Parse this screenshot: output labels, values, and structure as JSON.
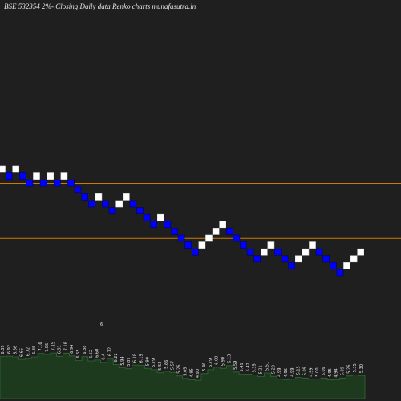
{
  "title": "BSE 532354  2%-  Closing Daily data  Renko  charts munafasutra.in",
  "colors": {
    "background": "#1f1f1f",
    "up_brick": "#ffffff",
    "down_brick": "#0000ff",
    "brick_border": "#000066",
    "level_line": "#cc7a00",
    "volume_bar": "#1e3a1e",
    "volume_line": "#2f6a2f",
    "label": "#eaeaea"
  },
  "chart_data": {
    "type": "renko",
    "title": "BSE 532354  2%-  Closing Daily data  Renko  charts munafasutra.in",
    "box_size_percent": 2,
    "bricks": [
      {
        "level": 0,
        "dir": "up"
      },
      {
        "level": -1,
        "dir": "down"
      },
      {
        "level": 0,
        "dir": "up"
      },
      {
        "level": -1,
        "dir": "down"
      },
      {
        "level": -2,
        "dir": "down"
      },
      {
        "level": -1,
        "dir": "up"
      },
      {
        "level": -2,
        "dir": "down"
      },
      {
        "level": -1,
        "dir": "up"
      },
      {
        "level": -2,
        "dir": "down"
      },
      {
        "level": -1,
        "dir": "up"
      },
      {
        "level": -2,
        "dir": "down"
      },
      {
        "level": -3,
        "dir": "down"
      },
      {
        "level": -4,
        "dir": "down"
      },
      {
        "level": -5,
        "dir": "down"
      },
      {
        "level": -4,
        "dir": "up"
      },
      {
        "level": -5,
        "dir": "down"
      },
      {
        "level": -6,
        "dir": "down"
      },
      {
        "level": -5,
        "dir": "up"
      },
      {
        "level": -4,
        "dir": "up"
      },
      {
        "level": -5,
        "dir": "down"
      },
      {
        "level": -6,
        "dir": "down"
      },
      {
        "level": -7,
        "dir": "down"
      },
      {
        "level": -8,
        "dir": "down"
      },
      {
        "level": -7,
        "dir": "up"
      },
      {
        "level": -8,
        "dir": "down"
      },
      {
        "level": -9,
        "dir": "down"
      },
      {
        "level": -10,
        "dir": "down"
      },
      {
        "level": -11,
        "dir": "down"
      },
      {
        "level": -12,
        "dir": "down"
      },
      {
        "level": -11,
        "dir": "up"
      },
      {
        "level": -10,
        "dir": "up"
      },
      {
        "level": -9,
        "dir": "up"
      },
      {
        "level": -8,
        "dir": "up"
      },
      {
        "level": -9,
        "dir": "down"
      },
      {
        "level": -10,
        "dir": "down"
      },
      {
        "level": -11,
        "dir": "down"
      },
      {
        "level": -12,
        "dir": "down"
      },
      {
        "level": -13,
        "dir": "down"
      },
      {
        "level": -12,
        "dir": "up"
      },
      {
        "level": -11,
        "dir": "up"
      },
      {
        "level": -12,
        "dir": "down"
      },
      {
        "level": -13,
        "dir": "down"
      },
      {
        "level": -14,
        "dir": "down"
      },
      {
        "level": -13,
        "dir": "up"
      },
      {
        "level": -12,
        "dir": "up"
      },
      {
        "level": -11,
        "dir": "up"
      },
      {
        "level": -12,
        "dir": "down"
      },
      {
        "level": -13,
        "dir": "down"
      },
      {
        "level": -14,
        "dir": "down"
      },
      {
        "level": -15,
        "dir": "down"
      },
      {
        "level": -14,
        "dir": "up"
      },
      {
        "level": -13,
        "dir": "up"
      },
      {
        "level": -12,
        "dir": "up"
      }
    ],
    "reference_levels": [
      -2.5,
      -10.5
    ],
    "volume_labels": [
      "6.89",
      "6.92",
      "6.86",
      "6.65",
      "6.72",
      "6.86",
      "7.16",
      "7.06",
      "7.19",
      "6.91",
      "7.18",
      "6.94",
      "6.55",
      "6.88",
      "6.52",
      "6.60",
      "6.4",
      "6.72",
      "6.22",
      "5.94",
      "5.87",
      "6.18",
      "6.15",
      "5.90",
      "5.79",
      "5.53",
      "5.66",
      "5.57",
      "5.26",
      "5.05",
      "4.95",
      "4.90",
      "5.46",
      "5.79",
      "6.00",
      "5.90",
      "6.13",
      "5.59",
      "5.41",
      "5.42",
      "5.35",
      "5.21",
      "5.51",
      "5.23",
      "4.99",
      "4.96",
      "4.99",
      "5.15",
      "5.09",
      "4.99",
      "5.00",
      "5.09",
      "4.95",
      "4.94",
      "5.09",
      "5.26",
      "5.35",
      "5.30"
    ],
    "volume_note": "6"
  }
}
